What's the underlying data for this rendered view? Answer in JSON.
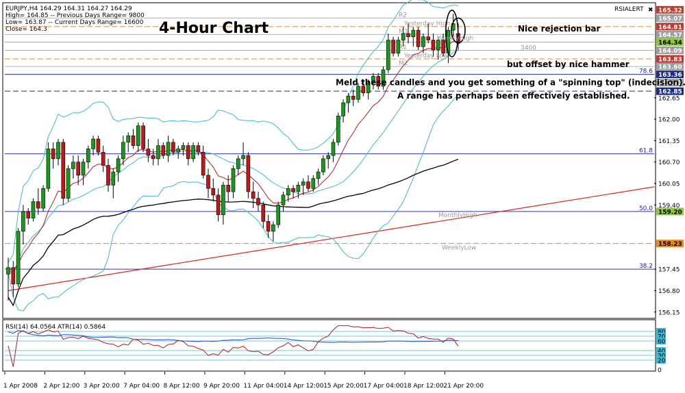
{
  "chart_data": {
    "type": "candlestick",
    "symbol_line": "EURJPY,H4  164.29 164.31 164.27 164.29",
    "info_lines": [
      "High= 164.85 -- Previous Days Range= 9800",
      "Low= 163.87 -- Current Days Range= 16600",
      "Close= 164.3"
    ],
    "title": "4-Hour Chart",
    "indicator_label": "RSIALERT",
    "price_axis": [
      {
        "value": 165.32,
        "label": "165.32",
        "bg": "#c0392b",
        "fg": "#ffffff"
      },
      {
        "value": 165.07,
        "label": "165.07",
        "bg": "#9e9e9e",
        "fg": "#ffffff"
      },
      {
        "value": 164.81,
        "label": "164.81",
        "bg": "#c0392b",
        "fg": "#ffffff"
      },
      {
        "value": 164.57,
        "label": "164.57",
        "bg": "#9e9e9e",
        "fg": "#ffffff"
      },
      {
        "value": 164.34,
        "label": "164.34",
        "bg": "#8ec741",
        "fg": "#000000"
      },
      {
        "value": 164.09,
        "label": "164.09",
        "bg": "#9e9e9e",
        "fg": "#ffffff"
      },
      {
        "value": 163.83,
        "label": "163.83",
        "bg": "#c0392b",
        "fg": "#ffffff"
      },
      {
        "value": 163.6,
        "label": "163.60",
        "bg": "#9e9e9e",
        "fg": "#ffffff"
      },
      {
        "value": 163.36,
        "label": "163.36",
        "bg": "#1c2a8a",
        "fg": "#ffffff"
      },
      {
        "value": 163.11,
        "label": "163.11",
        "bg": "#9e9e9e",
        "fg": "#ffffff"
      },
      {
        "value": 162.85,
        "label": "162.85",
        "bg": "#1c2a8a",
        "fg": "#ffffff"
      },
      {
        "value": 162.65,
        "label": "162.65",
        "bg": "",
        "fg": "#000000"
      },
      {
        "value": 162.0,
        "label": "162.00",
        "bg": "",
        "fg": "#000000"
      },
      {
        "value": 161.35,
        "label": "161.35",
        "bg": "",
        "fg": "#000000"
      },
      {
        "value": 160.7,
        "label": "160.70",
        "bg": "",
        "fg": "#000000"
      },
      {
        "value": 160.05,
        "label": "160.05",
        "bg": "",
        "fg": "#000000"
      },
      {
        "value": 159.4,
        "label": "159.40",
        "bg": "",
        "fg": "#000000"
      },
      {
        "value": 159.2,
        "label": "159.20",
        "bg": "#8ec741",
        "fg": "#000000"
      },
      {
        "value": 158.23,
        "label": "158.23",
        "bg": "#e8871e",
        "fg": "#000000"
      },
      {
        "value": 157.45,
        "label": "157.45",
        "bg": "",
        "fg": "#000000"
      },
      {
        "value": 156.8,
        "label": "156.80",
        "bg": "",
        "fg": "#000000"
      },
      {
        "value": 156.15,
        "label": "156.15",
        "bg": "",
        "fg": "#000000"
      }
    ],
    "x_labels": [
      "1 Apr 2008",
      "2 Apr 12:00",
      "3 Apr 20:00",
      "7 Apr 04:00",
      "8 Apr 12:00",
      "9 Apr 20:00",
      "11 Apr 04:00",
      "14 Apr 12:00",
      "15 Apr 20:00",
      "17 Apr 04:00",
      "18 Apr 12:00",
      "21 Apr 20:00"
    ],
    "x_label_bars": [
      0,
      8,
      16,
      24,
      32,
      40,
      48,
      56,
      64,
      72,
      80,
      88
    ],
    "candles": [
      {
        "o": 157.3,
        "h": 157.8,
        "l": 156.5,
        "c": 157.5
      },
      {
        "o": 157.5,
        "h": 157.7,
        "l": 156.6,
        "c": 157.0
      },
      {
        "o": 157.0,
        "h": 158.7,
        "l": 156.9,
        "c": 158.6
      },
      {
        "o": 158.6,
        "h": 159.4,
        "l": 158.2,
        "c": 159.2
      },
      {
        "o": 159.2,
        "h": 159.3,
        "l": 158.8,
        "c": 159.0
      },
      {
        "o": 159.0,
        "h": 159.6,
        "l": 158.9,
        "c": 159.5
      },
      {
        "o": 159.5,
        "h": 159.9,
        "l": 159.1,
        "c": 159.3
      },
      {
        "o": 159.3,
        "h": 160.0,
        "l": 159.2,
        "c": 159.9
      },
      {
        "o": 159.9,
        "h": 161.3,
        "l": 159.8,
        "c": 161.1
      },
      {
        "o": 161.1,
        "h": 161.3,
        "l": 160.5,
        "c": 160.8
      },
      {
        "o": 160.8,
        "h": 161.4,
        "l": 160.6,
        "c": 161.3
      },
      {
        "o": 161.3,
        "h": 161.4,
        "l": 159.4,
        "c": 159.6
      },
      {
        "o": 159.6,
        "h": 160.6,
        "l": 159.5,
        "c": 160.5
      },
      {
        "o": 160.5,
        "h": 160.9,
        "l": 160.2,
        "c": 160.7
      },
      {
        "o": 160.7,
        "h": 160.9,
        "l": 160.0,
        "c": 160.3
      },
      {
        "o": 160.3,
        "h": 160.8,
        "l": 160.0,
        "c": 160.7
      },
      {
        "o": 160.7,
        "h": 161.2,
        "l": 160.5,
        "c": 161.1
      },
      {
        "o": 161.1,
        "h": 161.5,
        "l": 160.9,
        "c": 161.4
      },
      {
        "o": 161.4,
        "h": 161.5,
        "l": 160.9,
        "c": 161.0
      },
      {
        "o": 161.0,
        "h": 161.2,
        "l": 160.4,
        "c": 160.6
      },
      {
        "o": 160.6,
        "h": 160.8,
        "l": 159.8,
        "c": 160.0
      },
      {
        "o": 160.0,
        "h": 160.5,
        "l": 159.6,
        "c": 160.4
      },
      {
        "o": 160.4,
        "h": 160.9,
        "l": 160.1,
        "c": 160.8
      },
      {
        "o": 160.8,
        "h": 161.5,
        "l": 160.6,
        "c": 161.3
      },
      {
        "o": 161.3,
        "h": 161.6,
        "l": 161.0,
        "c": 161.5
      },
      {
        "o": 161.5,
        "h": 161.7,
        "l": 161.1,
        "c": 161.2
      },
      {
        "o": 161.2,
        "h": 161.9,
        "l": 161.0,
        "c": 161.8
      },
      {
        "o": 161.8,
        "h": 161.9,
        "l": 161.0,
        "c": 161.1
      },
      {
        "o": 161.1,
        "h": 161.4,
        "l": 160.7,
        "c": 160.9
      },
      {
        "o": 160.9,
        "h": 161.1,
        "l": 160.6,
        "c": 160.8
      },
      {
        "o": 160.8,
        "h": 161.4,
        "l": 160.6,
        "c": 161.2
      },
      {
        "o": 161.2,
        "h": 161.3,
        "l": 160.8,
        "c": 160.9
      },
      {
        "o": 160.9,
        "h": 161.5,
        "l": 160.7,
        "c": 161.3
      },
      {
        "o": 161.3,
        "h": 161.4,
        "l": 160.9,
        "c": 161.0
      },
      {
        "o": 161.0,
        "h": 161.2,
        "l": 160.8,
        "c": 161.1
      },
      {
        "o": 161.1,
        "h": 161.3,
        "l": 160.9,
        "c": 161.2
      },
      {
        "o": 161.2,
        "h": 161.3,
        "l": 160.6,
        "c": 160.8
      },
      {
        "o": 160.8,
        "h": 161.3,
        "l": 160.7,
        "c": 161.2
      },
      {
        "o": 161.2,
        "h": 161.3,
        "l": 160.9,
        "c": 161.0
      },
      {
        "o": 161.0,
        "h": 161.2,
        "l": 160.2,
        "c": 160.3
      },
      {
        "o": 160.3,
        "h": 160.5,
        "l": 159.6,
        "c": 159.9
      },
      {
        "o": 159.9,
        "h": 160.2,
        "l": 159.5,
        "c": 159.7
      },
      {
        "o": 159.7,
        "h": 159.9,
        "l": 158.9,
        "c": 159.1
      },
      {
        "o": 159.1,
        "h": 160.1,
        "l": 158.8,
        "c": 160.0
      },
      {
        "o": 160.0,
        "h": 160.3,
        "l": 159.5,
        "c": 159.8
      },
      {
        "o": 159.8,
        "h": 160.6,
        "l": 159.6,
        "c": 160.5
      },
      {
        "o": 160.5,
        "h": 160.9,
        "l": 160.3,
        "c": 160.8
      },
      {
        "o": 160.8,
        "h": 161.3,
        "l": 160.6,
        "c": 160.9
      },
      {
        "o": 160.9,
        "h": 161.0,
        "l": 159.6,
        "c": 159.8
      },
      {
        "o": 159.8,
        "h": 160.1,
        "l": 159.3,
        "c": 159.6
      },
      {
        "o": 159.6,
        "h": 159.8,
        "l": 159.2,
        "c": 159.4
      },
      {
        "o": 159.4,
        "h": 159.5,
        "l": 158.7,
        "c": 158.9
      },
      {
        "o": 158.9,
        "h": 159.1,
        "l": 158.4,
        "c": 158.6
      },
      {
        "o": 158.6,
        "h": 158.9,
        "l": 158.3,
        "c": 158.8
      },
      {
        "o": 158.8,
        "h": 159.5,
        "l": 158.7,
        "c": 159.4
      },
      {
        "o": 159.4,
        "h": 159.8,
        "l": 159.2,
        "c": 159.7
      },
      {
        "o": 159.7,
        "h": 160.0,
        "l": 159.5,
        "c": 159.9
      },
      {
        "o": 159.9,
        "h": 160.0,
        "l": 159.6,
        "c": 159.8
      },
      {
        "o": 159.8,
        "h": 160.1,
        "l": 159.6,
        "c": 160.0
      },
      {
        "o": 160.0,
        "h": 160.2,
        "l": 159.7,
        "c": 160.1
      },
      {
        "o": 160.1,
        "h": 160.3,
        "l": 159.8,
        "c": 159.9
      },
      {
        "o": 159.9,
        "h": 160.3,
        "l": 159.8,
        "c": 160.2
      },
      {
        "o": 160.2,
        "h": 160.5,
        "l": 160.0,
        "c": 160.4
      },
      {
        "o": 160.4,
        "h": 160.9,
        "l": 160.3,
        "c": 160.8
      },
      {
        "o": 160.8,
        "h": 161.0,
        "l": 160.5,
        "c": 160.9
      },
      {
        "o": 160.9,
        "h": 161.4,
        "l": 160.7,
        "c": 161.3
      },
      {
        "o": 161.3,
        "h": 162.2,
        "l": 161.2,
        "c": 162.1
      },
      {
        "o": 162.1,
        "h": 162.6,
        "l": 161.9,
        "c": 162.5
      },
      {
        "o": 162.5,
        "h": 162.8,
        "l": 162.2,
        "c": 162.7
      },
      {
        "o": 162.7,
        "h": 162.9,
        "l": 162.4,
        "c": 162.6
      },
      {
        "o": 162.6,
        "h": 163.1,
        "l": 162.5,
        "c": 163.0
      },
      {
        "o": 163.0,
        "h": 163.2,
        "l": 162.7,
        "c": 162.8
      },
      {
        "o": 162.8,
        "h": 163.2,
        "l": 162.6,
        "c": 163.1
      },
      {
        "o": 163.1,
        "h": 163.4,
        "l": 162.9,
        "c": 163.3
      },
      {
        "o": 163.3,
        "h": 163.4,
        "l": 162.9,
        "c": 163.0
      },
      {
        "o": 163.0,
        "h": 163.6,
        "l": 162.9,
        "c": 163.5
      },
      {
        "o": 163.5,
        "h": 164.6,
        "l": 163.4,
        "c": 164.4
      },
      {
        "o": 164.4,
        "h": 164.5,
        "l": 163.9,
        "c": 164.0
      },
      {
        "o": 164.0,
        "h": 164.5,
        "l": 163.9,
        "c": 164.4
      },
      {
        "o": 164.4,
        "h": 164.8,
        "l": 164.2,
        "c": 164.6
      },
      {
        "o": 164.6,
        "h": 164.9,
        "l": 164.3,
        "c": 164.5
      },
      {
        "o": 164.5,
        "h": 164.8,
        "l": 164.2,
        "c": 164.7
      },
      {
        "o": 164.7,
        "h": 164.8,
        "l": 164.1,
        "c": 164.2
      },
      {
        "o": 164.2,
        "h": 164.6,
        "l": 164.0,
        "c": 164.5
      },
      {
        "o": 164.5,
        "h": 164.9,
        "l": 164.3,
        "c": 164.4
      },
      {
        "o": 164.4,
        "h": 164.6,
        "l": 163.9,
        "c": 164.1
      },
      {
        "o": 164.1,
        "h": 164.5,
        "l": 163.8,
        "c": 164.4
      },
      {
        "o": 164.4,
        "h": 164.6,
        "l": 163.9,
        "c": 164.0
      },
      {
        "o": 164.0,
        "h": 164.8,
        "l": 163.7,
        "c": 164.7
      },
      {
        "o": 164.7,
        "h": 165.2,
        "l": 164.5,
        "c": 164.9
      },
      {
        "o": 164.6,
        "h": 164.9,
        "l": 164.1,
        "c": 164.3
      }
    ],
    "level_lines": [
      {
        "value": 165.07,
        "color": "#b0b0b0",
        "style": "solid",
        "label": "R2"
      },
      {
        "value": 164.81,
        "color": "#e8871e",
        "style": "dashed",
        "label": "Yesterday High"
      },
      {
        "value": 164.57,
        "color": "#b0b0b0",
        "style": "solid",
        "label": "M3"
      },
      {
        "value": 164.34,
        "color": "#8ec741",
        "style": "solid",
        "label": ""
      },
      {
        "value": 164.09,
        "color": "#b0b0b0",
        "style": "solid",
        "label": "R1"
      },
      {
        "value": 163.83,
        "color": "#e8871e",
        "style": "dashed",
        "label": "Yesterday Low"
      },
      {
        "value": 163.6,
        "color": "#b0b0b0",
        "style": "solid",
        "label": "M2"
      },
      {
        "value": 163.36,
        "color": "#1c2a8a",
        "style": "solid",
        "label": "78.6"
      },
      {
        "value": 162.85,
        "color": "#1c2a8a",
        "style": "dashed",
        "label": ""
      },
      {
        "value": 160.95,
        "color": "#3030c0",
        "style": "solid",
        "label": "61.8"
      },
      {
        "value": 159.2,
        "color": "#3030c0",
        "style": "solid",
        "label": "50.0"
      },
      {
        "value": 158.23,
        "color": "#e8871e",
        "style": "dashed",
        "label": ""
      },
      {
        "value": 157.45,
        "color": "#3030c0",
        "style": "solid",
        "label": "38.2"
      }
    ],
    "trendline": {
      "x1": 0,
      "y1": 156.8,
      "x2": 160,
      "y2": 160.7,
      "color": "#e02020"
    },
    "ma_labels": [
      "MonthlyHigh",
      "WeeklyLow",
      "3400",
      "WeeklyHigh"
    ],
    "annotations": [
      "Nice rejection bar",
      "but offset by nice hammer",
      "Meld these candles and you get something of a \"spinning top\" (indecision).",
      "A range has perhaps been effectively established."
    ],
    "rsi_label": "RSI(14) 64.0564   ATR(14) 0.5864",
    "rsi_axis": [
      "80",
      "70",
      "60",
      "40",
      "30",
      "20",
      "0"
    ],
    "colors": {
      "bull": "#1a9a1a",
      "bear": "#c01818",
      "bb": "#3ab8d8",
      "ema": "#c01818",
      "sma": "#000000"
    }
  }
}
